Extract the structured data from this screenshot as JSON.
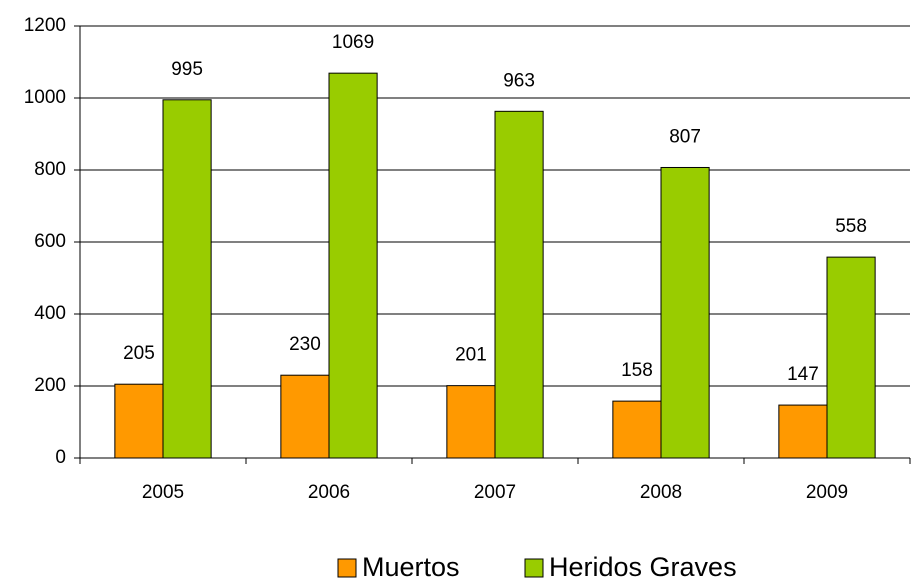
{
  "chart_data": {
    "type": "bar",
    "categories": [
      "2005",
      "2006",
      "2007",
      "2008",
      "2009"
    ],
    "series": [
      {
        "name": "Muertos",
        "color": "#ff9900",
        "values": [
          205,
          230,
          201,
          158,
          147
        ]
      },
      {
        "name": "Heridos Graves",
        "color": "#99cc00",
        "values": [
          995,
          1069,
          963,
          807,
          558
        ]
      }
    ],
    "ylim": [
      0,
      1200
    ],
    "yticks": [
      0,
      200,
      400,
      600,
      800,
      1000,
      1200
    ],
    "grid": true,
    "legend": "bottom"
  }
}
